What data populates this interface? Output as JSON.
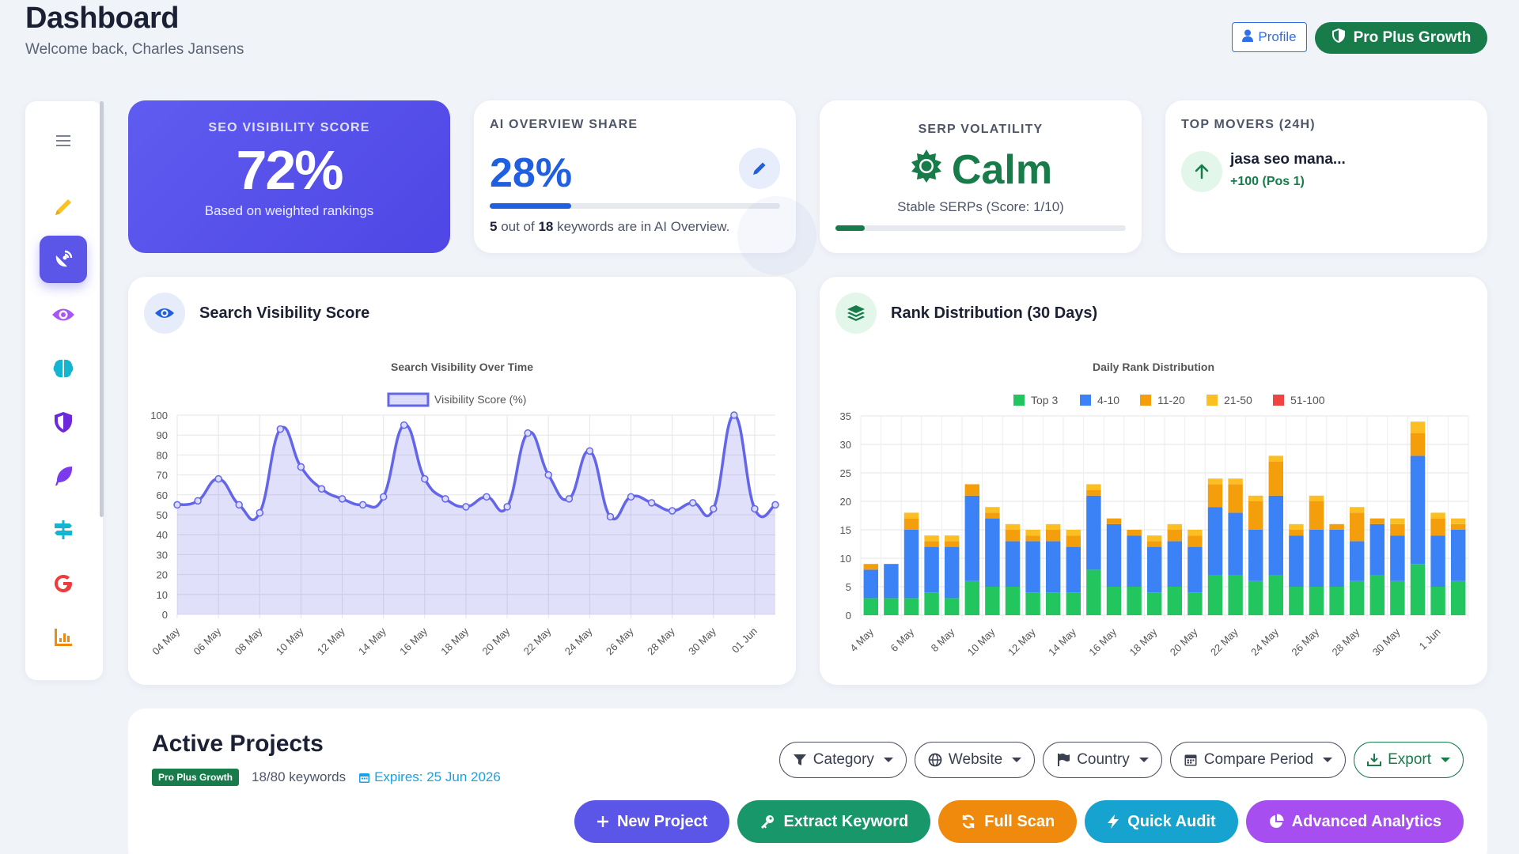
{
  "header": {
    "title": "Dashboard",
    "subtitle": "Welcome back, Charles Jansens",
    "profile_label": "Profile",
    "plan_label": "Pro Plus Growth"
  },
  "sidebar": {
    "items": [
      {
        "icon": "menu-icon"
      },
      {
        "icon": "pencil-icon"
      },
      {
        "icon": "satellite-dish-icon",
        "active": true
      },
      {
        "icon": "eye-icon"
      },
      {
        "icon": "brain-icon"
      },
      {
        "icon": "shield-icon"
      },
      {
        "icon": "feather-icon"
      },
      {
        "icon": "signs-icon"
      },
      {
        "icon": "google-icon"
      },
      {
        "icon": "bar-chart-icon"
      }
    ]
  },
  "kpis": {
    "seo": {
      "label": "SEO VISIBILITY SCORE",
      "value": "72%",
      "sub": "Based on weighted rankings"
    },
    "ai": {
      "label": "AI OVERVIEW SHARE",
      "value": "28%",
      "count": "5",
      "total": "18",
      "text_mid": " out of ",
      "text_end": " keywords are in AI Overview.",
      "progress": 0.28
    },
    "serp": {
      "label": "SERP VOLATILITY",
      "value": "Calm",
      "sub": "Stable SERPs (Score: 1/10)",
      "progress": 0.1
    },
    "movers": {
      "label": "TOP MOVERS (24H)",
      "keyword": "jasa seo mana...",
      "change": "+100 (Pos 1)"
    }
  },
  "visibility_card": {
    "title": "Search Visibility Score",
    "chart_data": {
      "type": "area",
      "title": "Search Visibility Over Time",
      "legend": [
        "Visibility Score (%)"
      ],
      "ylim": [
        0,
        100
      ],
      "yticks": [
        0,
        10,
        20,
        30,
        40,
        50,
        60,
        70,
        80,
        90,
        100
      ],
      "xtick_labels": [
        "04 May",
        "06 May",
        "08 May",
        "10 May",
        "12 May",
        "14 May",
        "16 May",
        "18 May",
        "20 May",
        "22 May",
        "24 May",
        "26 May",
        "28 May",
        "30 May",
        "01 Jun"
      ],
      "series": [
        {
          "name": "Visibility Score (%)",
          "values": [
            55,
            57,
            68,
            55,
            51,
            93,
            74,
            63,
            58,
            55,
            59,
            95,
            68,
            58,
            54,
            59,
            54,
            91,
            70,
            58,
            82,
            49,
            59,
            56,
            52,
            56,
            53,
            100,
            53,
            55
          ]
        }
      ],
      "color": "#6366e8"
    }
  },
  "rank_card": {
    "title": "Rank Distribution (30 Days)",
    "chart_data": {
      "type": "bar",
      "stacked": true,
      "title": "Daily Rank Distribution",
      "ylim": [
        0,
        35
      ],
      "yticks": [
        0,
        5,
        10,
        15,
        20,
        25,
        30,
        35
      ],
      "xtick_labels": [
        "4 May",
        "6 May",
        "8 May",
        "10 May",
        "12 May",
        "14 May",
        "16 May",
        "18 May",
        "20 May",
        "22 May",
        "24 May",
        "26 May",
        "28 May",
        "30 May",
        "1 Jun"
      ],
      "series": [
        {
          "name": "Top 3",
          "color": "#22c55e",
          "values": [
            3,
            3,
            3,
            4,
            3,
            6,
            5,
            5,
            4,
            4,
            4,
            8,
            5,
            5,
            4,
            5,
            4,
            7,
            7,
            6,
            7,
            5,
            5,
            5,
            6,
            7,
            6,
            9,
            5,
            6
          ]
        },
        {
          "name": "4-10",
          "color": "#3b82f6",
          "values": [
            5,
            6,
            12,
            8,
            9,
            15,
            12,
            8,
            9,
            9,
            8,
            13,
            11,
            9,
            8,
            8,
            8,
            12,
            11,
            9,
            14,
            9,
            10,
            10,
            7,
            9,
            8,
            19,
            9,
            9
          ]
        },
        {
          "name": "11-20",
          "color": "#f59e0b",
          "values": [
            1,
            0,
            2,
            1,
            1,
            2,
            1,
            2,
            1,
            2,
            2,
            1,
            1,
            1,
            1,
            2,
            2,
            4,
            5,
            5,
            6,
            1,
            5,
            1,
            5,
            1,
            2,
            4,
            3,
            1
          ]
        },
        {
          "name": "21-50",
          "color": "#fbbf24",
          "values": [
            0,
            0,
            1,
            1,
            1,
            0,
            1,
            1,
            1,
            1,
            1,
            1,
            0,
            0,
            1,
            1,
            1,
            1,
            1,
            1,
            1,
            1,
            1,
            0,
            1,
            0,
            1,
            2,
            1,
            1
          ]
        },
        {
          "name": "51-100",
          "color": "#ef4444",
          "values": [
            0,
            0,
            0,
            0,
            0,
            0,
            0,
            0,
            0,
            0,
            0,
            0,
            0,
            0,
            0,
            0,
            0,
            0,
            0,
            0,
            0,
            0,
            0,
            0,
            0,
            0,
            0,
            0,
            0,
            0
          ]
        }
      ]
    }
  },
  "projects": {
    "title": "Active Projects",
    "plan_tag": "Pro Plus Growth",
    "keywords": "18/80 keywords",
    "expires": "Expires: 25 Jun 2026",
    "filters": [
      "Category",
      "Website",
      "Country",
      "Compare Period",
      "Export"
    ],
    "actions": [
      {
        "label": "New Project",
        "color": "#5b55e8"
      },
      {
        "label": "Extract Keyword",
        "color": "#17976a"
      },
      {
        "label": "Full Scan",
        "color": "#f08a0c"
      },
      {
        "label": "Quick Audit",
        "color": "#16a3cf"
      },
      {
        "label": "Advanced Analytics",
        "color": "#a64ef0"
      }
    ]
  }
}
